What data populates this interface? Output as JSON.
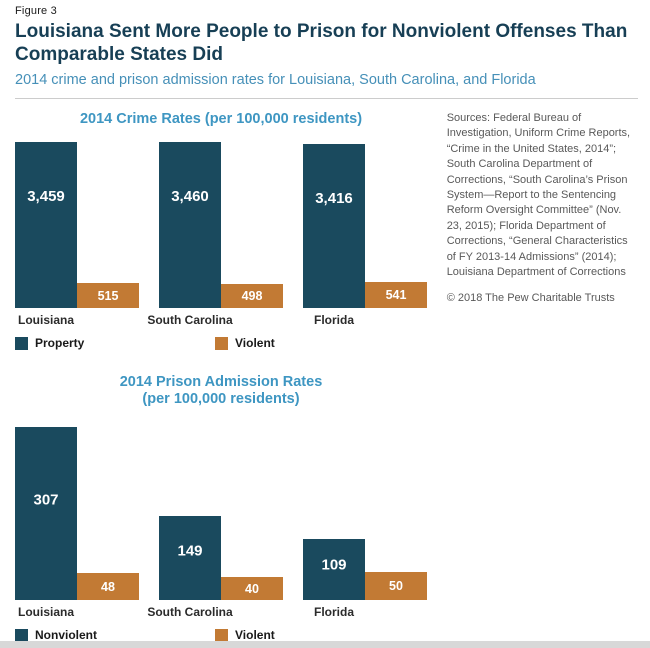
{
  "header": {
    "figure_label": "Figure 3",
    "title_lines": [
      "Louisiana Sent More People to Prison for Nonviolent Offenses Than",
      "Comparable States Did"
    ],
    "subtitle": "2014 crime and prison admission rates for Louisiana, South Carolina, and Florida"
  },
  "sidebar": {
    "sources": "Sources: Federal Bureau of Investigation, Uniform Crime Reports, “Crime in the United States, 2014”; South Carolina Department of Corrections, “South Carolina’s Prison System—Report to the Sentencing Reform Oversight Committee” (Nov. 23, 2015); Florida Department of Corrections, “General Characteristics of FY 2013-14 Admissions” (2014); Louisiana Department of Corrections",
    "copyright": "© 2018 The Pew Charitable Trusts"
  },
  "colors": {
    "dark_bar": "#1a4a5e",
    "orange_bar": "#c27a34",
    "title_navy": "#173f55",
    "subtitle_blue": "#4690b8",
    "chart_title_blue": "#3e96c2",
    "divider_gray": "#cccccc",
    "footer_strip_gray": "#d8d8d8"
  },
  "chart_data": [
    {
      "type": "bar",
      "title": "2014 Crime Rates (per 100,000 residents)",
      "title_lines": [
        "2014 Crime Rates (per 100,000 residents)"
      ],
      "categories": [
        "Louisiana",
        "South Carolina",
        "Florida"
      ],
      "series": [
        {
          "name": "Property",
          "color": "#1a4a5e",
          "values": [
            3459,
            3460,
            3416
          ],
          "labels": [
            "3,459",
            "3,460",
            "3,416"
          ]
        },
        {
          "name": "Violent",
          "color": "#c27a34",
          "values": [
            515,
            498,
            541
          ],
          "labels": [
            "515",
            "498",
            "541"
          ]
        }
      ],
      "ylim": [
        0,
        3500
      ],
      "grid": false,
      "legend_position": "bottom"
    },
    {
      "type": "bar",
      "title": "2014 Prison Admission Rates (per 100,000 residents)",
      "title_lines": [
        "2014 Prison Admission Rates",
        "(per 100,000 residents)"
      ],
      "categories": [
        "Louisiana",
        "South Carolina",
        "Florida"
      ],
      "series": [
        {
          "name": "Nonviolent",
          "color": "#1a4a5e",
          "values": [
            307,
            149,
            109
          ],
          "labels": [
            "307",
            "149",
            "109"
          ]
        },
        {
          "name": "Violent",
          "color": "#c27a34",
          "values": [
            48,
            40,
            50
          ],
          "labels": [
            "48",
            "40",
            "50"
          ]
        }
      ],
      "ylim": [
        0,
        320
      ],
      "grid": false,
      "legend_position": "bottom"
    }
  ]
}
